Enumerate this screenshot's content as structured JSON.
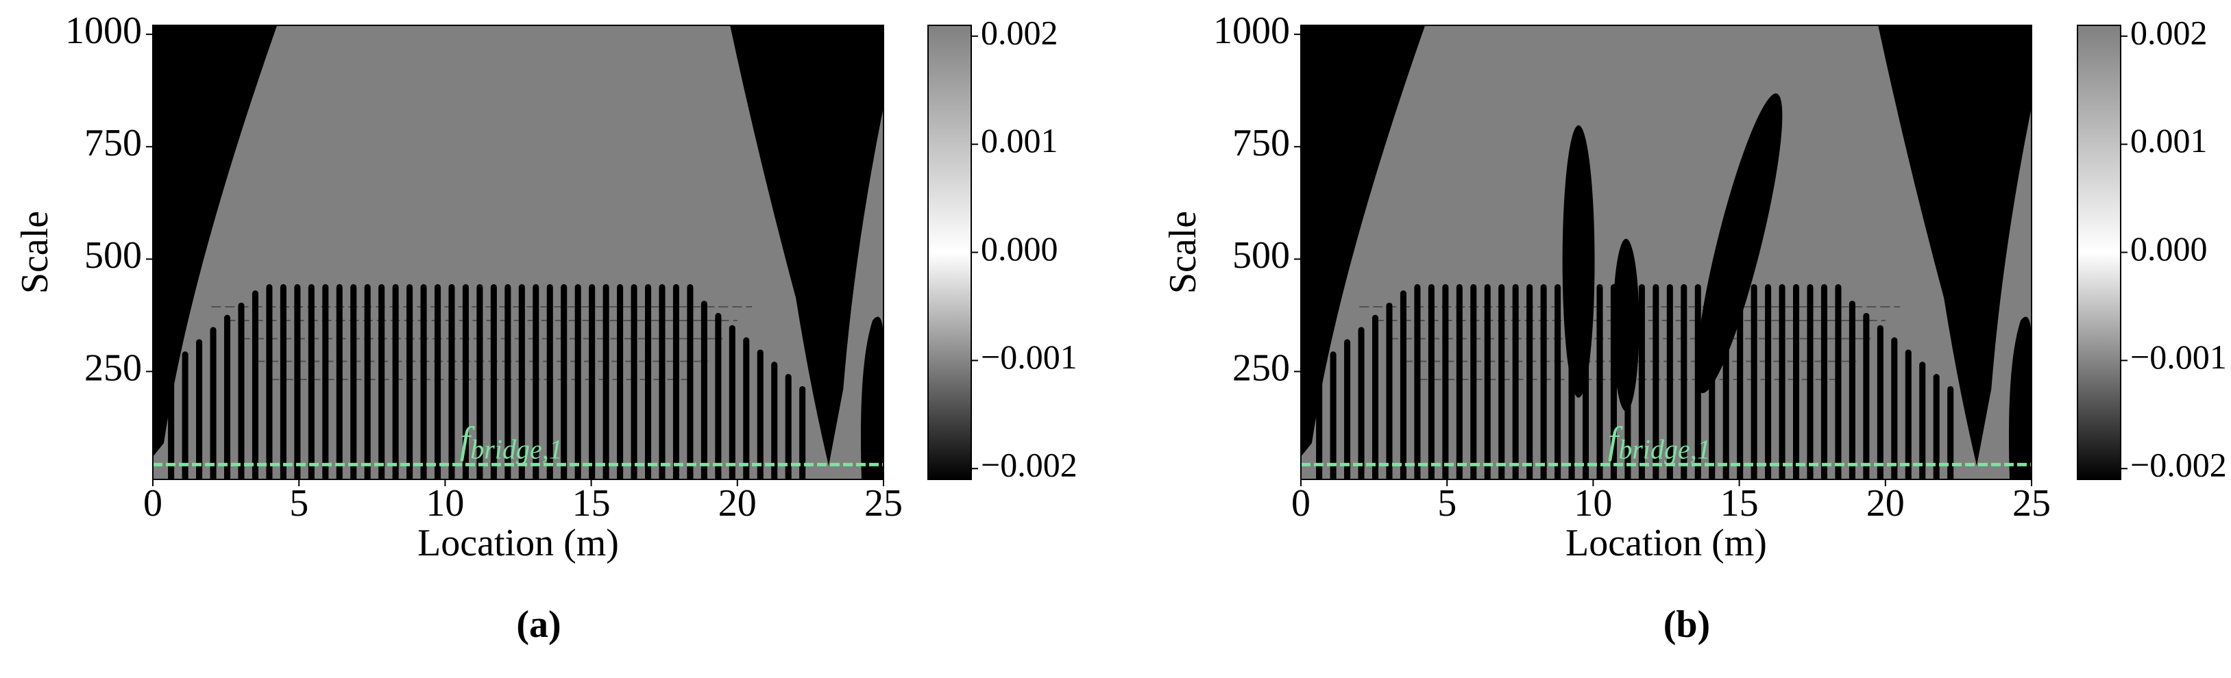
{
  "chart_data": [
    {
      "type": "scalogram",
      "xlabel": "Location (m)",
      "ylabel": "Scale",
      "panel_label": "(a)",
      "xlim": [
        0,
        25
      ],
      "xticks": [
        0,
        5,
        10,
        15,
        20,
        25
      ],
      "ylim": [
        10,
        1020
      ],
      "yticks": [
        250,
        500,
        750,
        1000
      ],
      "background_color": "#808080",
      "colorbar": {
        "lim": [
          -0.0021,
          0.0021
        ],
        "ticks": [
          {
            "value": -0.002,
            "label": "−0.002"
          },
          {
            "value": -0.001,
            "label": "−0.001"
          },
          {
            "value": 0,
            "label": "0.000"
          },
          0.001,
          0.002
        ],
        "colors": [
          "#000000",
          "#ffffff",
          "#808080"
        ]
      },
      "reference_line": {
        "y": 43,
        "color": "#7be3a0",
        "label": "f",
        "label_sub": "bridge,1",
        "label_x": 10.5
      }
    },
    {
      "type": "scalogram",
      "xlabel": "Location (m)",
      "ylabel": "Scale",
      "panel_label": "(b)",
      "xlim": [
        0,
        25
      ],
      "xticks": [
        0,
        5,
        10,
        15,
        20,
        25
      ],
      "ylim": [
        10,
        1020
      ],
      "yticks": [
        250,
        500,
        750,
        1000
      ],
      "background_color": "#808080",
      "colorbar": {
        "lim": [
          -0.0021,
          0.0021
        ],
        "ticks": [
          {
            "value": -0.002,
            "label": "−0.002"
          },
          {
            "value": -0.001,
            "label": "−0.001"
          },
          {
            "value": 0,
            "label": "0.000"
          },
          0.001,
          0.002
        ],
        "colors": [
          "#000000",
          "#ffffff",
          "#808080"
        ]
      },
      "reference_line": {
        "y": 43,
        "color": "#7be3a0",
        "label": "f",
        "label_sub": "bridge,1",
        "label_x": 10.5
      }
    }
  ]
}
